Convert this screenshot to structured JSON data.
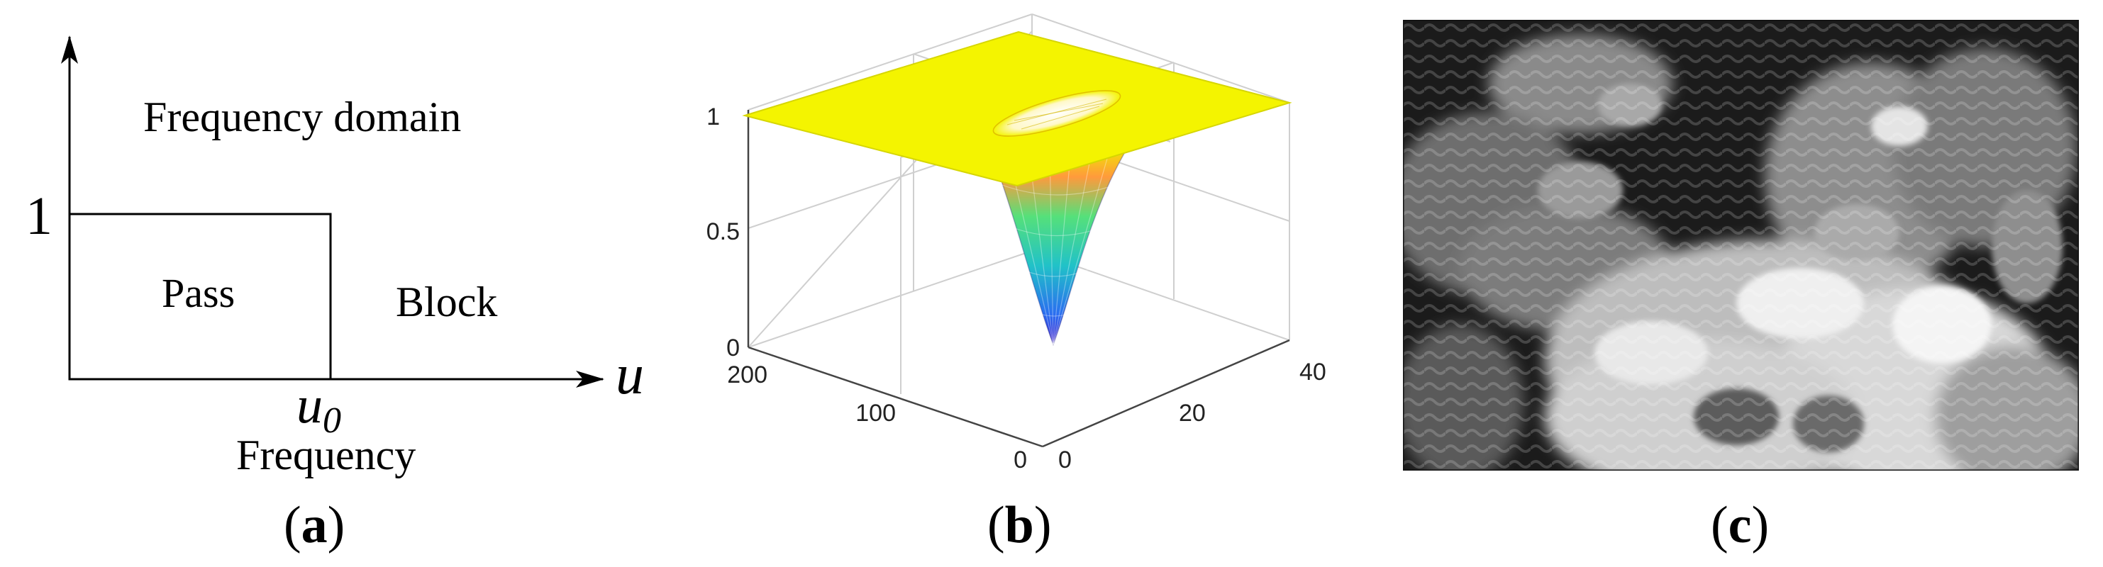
{
  "figure": {
    "panel_a": {
      "label_open": "(",
      "label_letter": "a",
      "label_close": ")",
      "y_tick": "1",
      "x_axis_symbol": "u",
      "cutoff_base": "u",
      "cutoff_sub": "0",
      "region_label": "Frequency domain",
      "pass_label": "Pass",
      "block_label": "Block",
      "x_caption": "Frequency"
    },
    "panel_b": {
      "label_open": "(",
      "label_letter": "b",
      "label_close": ")",
      "z_ticks": [
        "0",
        "0.5",
        "1"
      ],
      "left_ticks": [
        "200",
        "100",
        "0"
      ],
      "right_ticks": [
        "0",
        "20",
        "40"
      ]
    },
    "panel_c": {
      "label_open": "(",
      "label_letter": "c",
      "label_close": ")",
      "image": "filtered-grayscale-image"
    }
  },
  "colors": {
    "surface_top": "#f4f400",
    "surface_edge": "#c8c800",
    "image_bg": "#1a1a1a"
  }
}
